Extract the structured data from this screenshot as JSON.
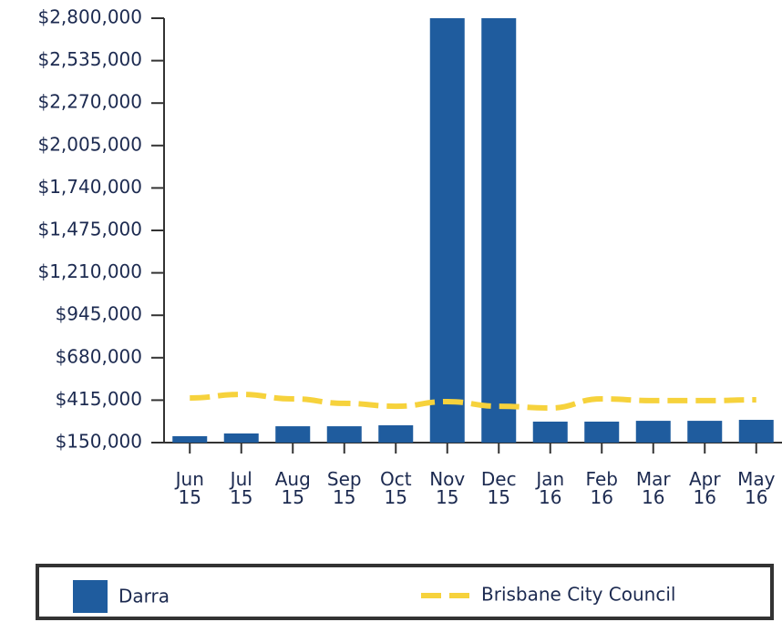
{
  "chart_data": {
    "type": "bar",
    "categories": [
      "Jun 15",
      "Jul 15",
      "Aug 15",
      "Sep 15",
      "Oct 15",
      "Nov 15",
      "Dec 15",
      "Jan 16",
      "Feb 16",
      "Mar 16",
      "Apr 16",
      "May 16"
    ],
    "series": [
      {
        "name": "Darra",
        "type": "bar",
        "color": "#1f5c9e",
        "values": [
          190000,
          207000,
          252000,
          252000,
          258000,
          2800000,
          2800000,
          281000,
          281000,
          286000,
          286000,
          292000
        ]
      },
      {
        "name": "Brisbane City Council",
        "type": "line",
        "color": "#f6d23c",
        "values": [
          429000,
          451000,
          423000,
          395000,
          377000,
          406000,
          377000,
          366000,
          423000,
          412000,
          412000,
          417000
        ]
      }
    ],
    "ylim": [
      150000,
      2800000
    ],
    "yticks": [
      {
        "value": 150000,
        "label": "$150,000"
      },
      {
        "value": 415000,
        "label": "$415,000"
      },
      {
        "value": 680000,
        "label": "$680,000"
      },
      {
        "value": 945000,
        "label": "$945,000"
      },
      {
        "value": 1210000,
        "label": "$1,210,000"
      },
      {
        "value": 1475000,
        "label": "$1,475,000"
      },
      {
        "value": 1740000,
        "label": "$1,740,000"
      },
      {
        "value": 2005000,
        "label": "$2,005,000"
      },
      {
        "value": 2270000,
        "label": "$2,270,000"
      },
      {
        "value": 2535000,
        "label": "$2,535,000"
      },
      {
        "value": 2800000,
        "label": "$2,800,000"
      }
    ],
    "legend": "bottom"
  }
}
